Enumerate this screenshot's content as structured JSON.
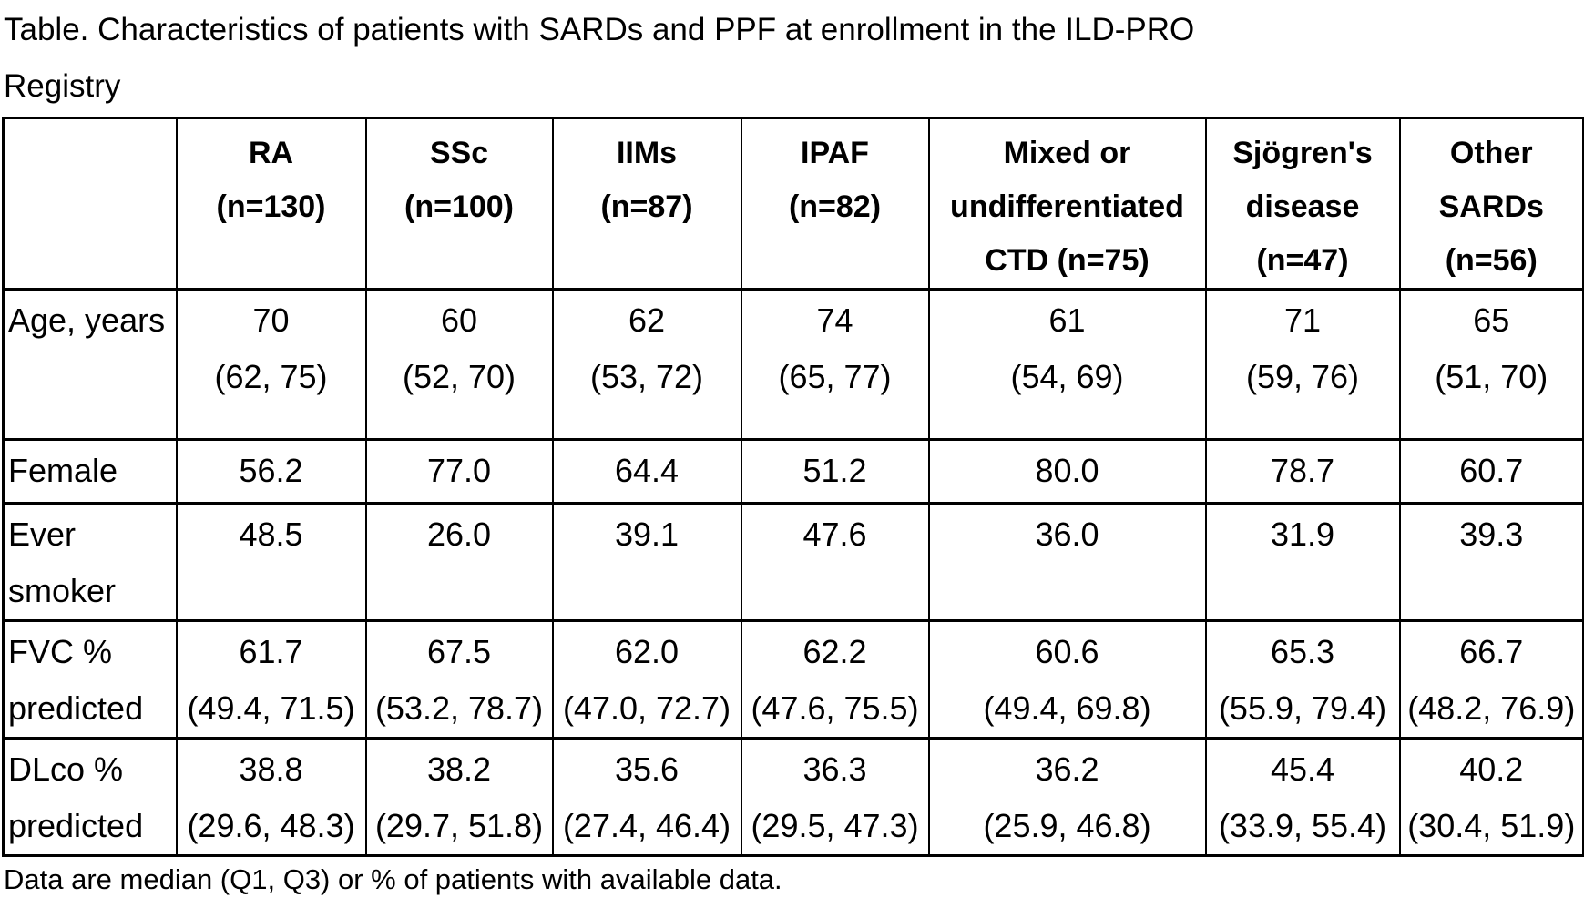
{
  "title": {
    "line1": "Table. Characteristics of patients with SARDs and PPF at enrollment in the ILD-PRO",
    "line2": "Registry"
  },
  "footnote": "Data are median (Q1, Q3) or % of patients with available data.",
  "table": {
    "corner_label": "",
    "columns": [
      {
        "lines": [
          "RA",
          "(n=130)"
        ]
      },
      {
        "lines": [
          "SSc",
          "(n=100)"
        ]
      },
      {
        "lines": [
          "IIMs",
          "(n=87)"
        ]
      },
      {
        "lines": [
          "IPAF",
          "(n=82)"
        ]
      },
      {
        "lines": [
          "Mixed or",
          "undifferentiated",
          "CTD (n=75)"
        ]
      },
      {
        "lines": [
          "Sjögren's",
          "disease",
          "(n=47)"
        ]
      },
      {
        "lines": [
          "Other",
          "SARDs",
          "(n=56)"
        ]
      }
    ],
    "rows": [
      {
        "label_lines": [
          "Age, years"
        ],
        "values": [
          [
            "70",
            "(62, 75)"
          ],
          [
            "60",
            "(52, 70)"
          ],
          [
            "62",
            "(53, 72)"
          ],
          [
            "74",
            "(65, 77)"
          ],
          [
            "61",
            "(54, 69)"
          ],
          [
            "71",
            "(59, 76)"
          ],
          [
            "65",
            "(51, 70)"
          ]
        ]
      },
      {
        "label_lines": [
          "Female"
        ],
        "values": [
          [
            "56.2"
          ],
          [
            "77.0"
          ],
          [
            "64.4"
          ],
          [
            "51.2"
          ],
          [
            "80.0"
          ],
          [
            "78.7"
          ],
          [
            "60.7"
          ]
        ]
      },
      {
        "label_lines": [
          "Ever",
          "smoker"
        ],
        "values": [
          [
            "48.5"
          ],
          [
            "26.0"
          ],
          [
            "39.1"
          ],
          [
            "47.6"
          ],
          [
            "36.0"
          ],
          [
            "31.9"
          ],
          [
            "39.3"
          ]
        ]
      },
      {
        "label_lines": [
          "FVC %",
          "predicted"
        ],
        "values": [
          [
            "61.7",
            "(49.4, 71.5)"
          ],
          [
            "67.5",
            "(53.2, 78.7)"
          ],
          [
            "62.0",
            "(47.0, 72.7)"
          ],
          [
            "62.2",
            "(47.6, 75.5)"
          ],
          [
            "60.6",
            "(49.4, 69.8)"
          ],
          [
            "65.3",
            "(55.9, 79.4)"
          ],
          [
            "66.7",
            "(48.2, 76.9)"
          ]
        ]
      },
      {
        "label_lines": [
          "DLco %",
          "predicted"
        ],
        "values": [
          [
            "38.8",
            "(29.6, 48.3)"
          ],
          [
            "38.2",
            "(29.7, 51.8)"
          ],
          [
            "35.6",
            "(27.4, 46.4)"
          ],
          [
            "36.3",
            "(29.5, 47.3)"
          ],
          [
            "36.2",
            "(25.9, 46.8)"
          ],
          [
            "45.4",
            "(33.9, 55.4)"
          ],
          [
            "40.2",
            "(30.4, 51.9)"
          ]
        ]
      }
    ]
  }
}
